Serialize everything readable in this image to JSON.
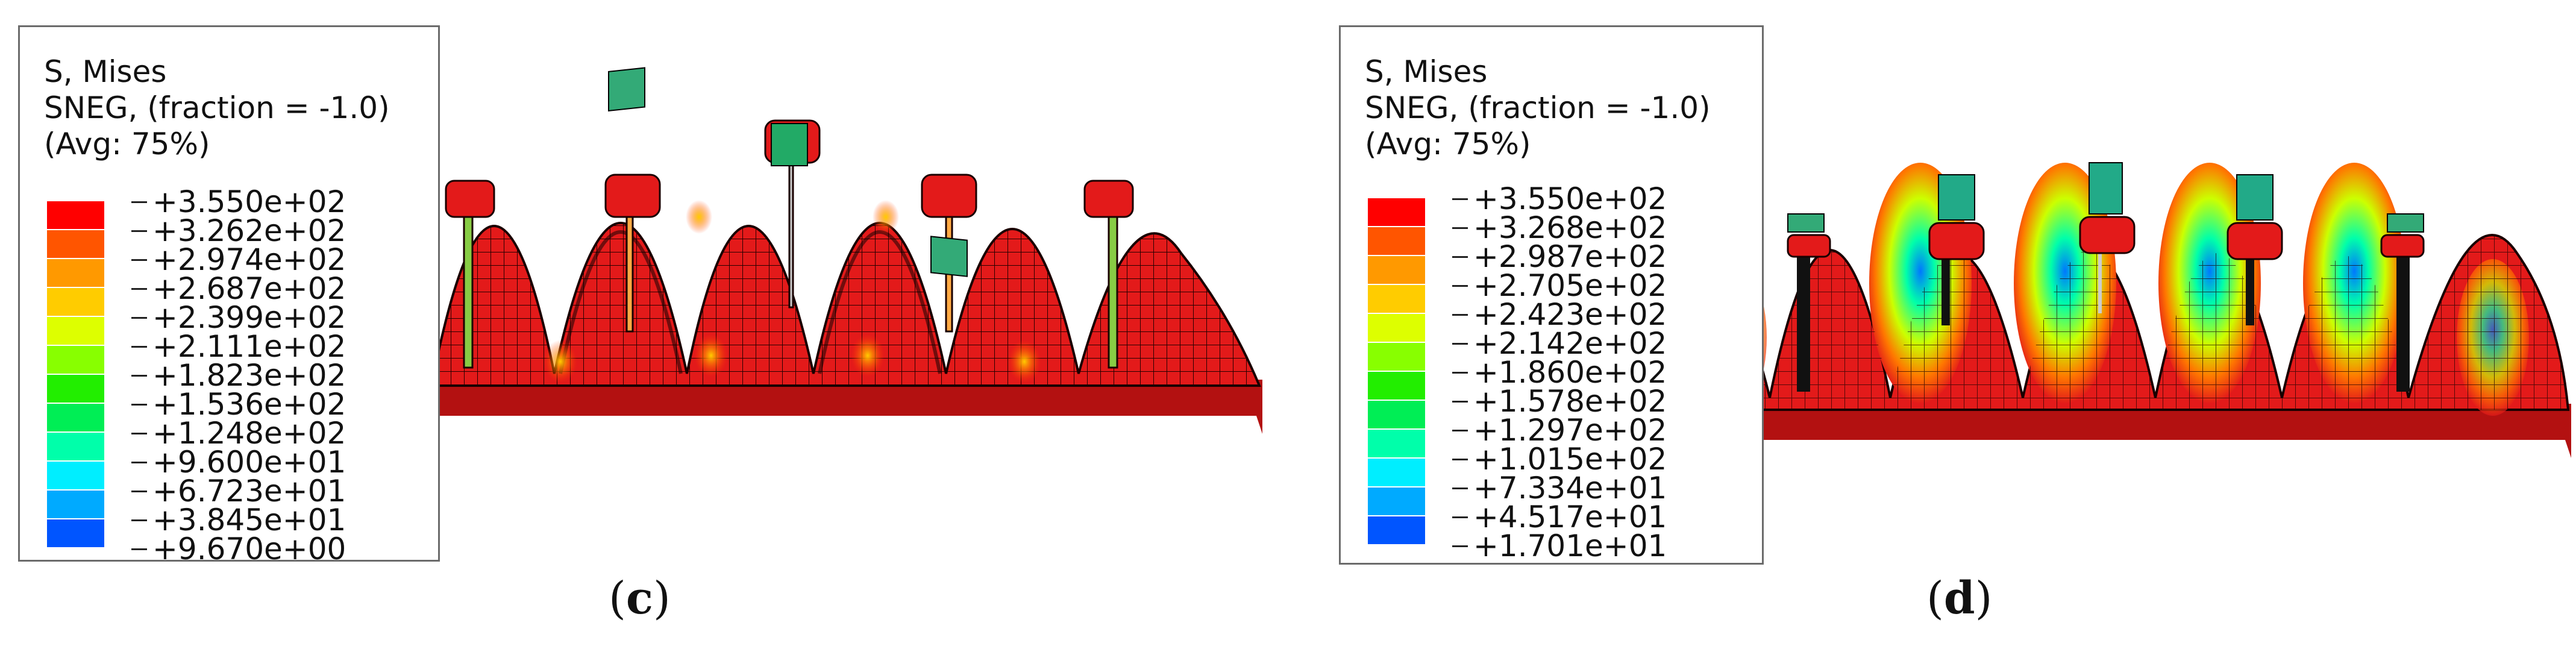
{
  "panels": [
    {
      "caption_letter": "c",
      "legend": {
        "line1": "S, Mises",
        "line2": "SNEG, (fraction = -1.0)",
        "line3": "(Avg: 75%)",
        "values": [
          "+3.550e+02",
          "+3.262e+02",
          "+2.974e+02",
          "+2.687e+02",
          "+2.399e+02",
          "+2.111e+02",
          "+1.823e+02",
          "+1.536e+02",
          "+1.248e+02",
          "+9.600e+01",
          "+6.723e+01",
          "+3.845e+01",
          "+9.670e+00"
        ]
      }
    },
    {
      "caption_letter": "d",
      "legend": {
        "line1": "S, Mises",
        "line2": "SNEG, (fraction = -1.0)",
        "line3": "(Avg: 75%)",
        "values": [
          "+3.550e+02",
          "+3.268e+02",
          "+2.987e+02",
          "+2.705e+02",
          "+2.423e+02",
          "+2.142e+02",
          "+1.860e+02",
          "+1.578e+02",
          "+1.297e+02",
          "+1.015e+02",
          "+7.334e+01",
          "+4.517e+01",
          "+1.701e+01"
        ]
      }
    }
  ],
  "colors": {
    "contour": [
      "#ff0000",
      "#ff5500",
      "#ff9900",
      "#ffcc00",
      "#ddff00",
      "#88ff00",
      "#22ee00",
      "#00ee55",
      "#00ffaa",
      "#00eeff",
      "#00aaff",
      "#0055ff",
      "#0000ee"
    ],
    "mesh_red": "#e31a1a",
    "mesh_line": "#2a0000"
  }
}
